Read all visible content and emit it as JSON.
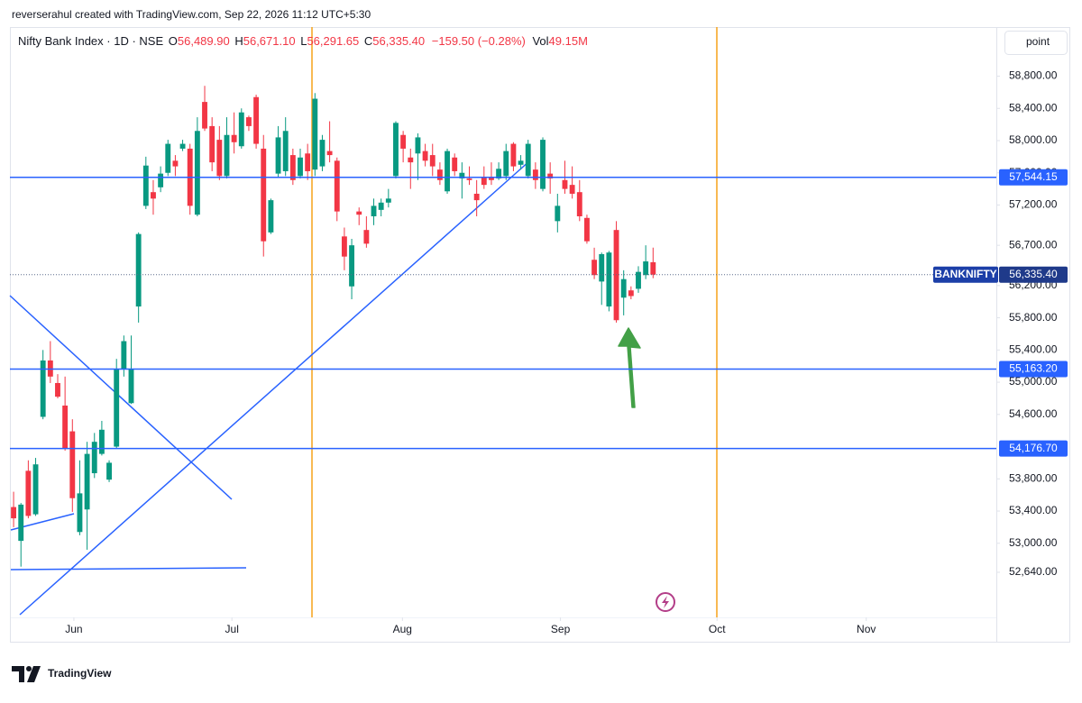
{
  "header": {
    "text": "reverserahul created with TradingView.com, Sep 22, 2026 11:12 UTC+5:30"
  },
  "chart_data": {
    "type": "candlestick",
    "legend": {
      "symbol": "Nifty Bank Index · 1D · NSE",
      "items": [
        {
          "label": "O",
          "value": "56,489.90"
        },
        {
          "label": "H",
          "value": "56,671.10"
        },
        {
          "label": "L",
          "value": "56,291.65"
        },
        {
          "label": "C",
          "value": "56,335.40"
        }
      ],
      "change": "−159.50 (−0.28%)",
      "volume": {
        "label": "Vol",
        "value": "49.15M"
      }
    },
    "scale_button": "point",
    "up_color": "#089981",
    "down_color": "#f23645",
    "open": [
      53450,
      53030,
      53900,
      53360,
      54570,
      55270,
      54990,
      54710,
      54390,
      53140,
      53420,
      53870,
      54110,
      53790,
      54200,
      55160,
      54740,
      55940,
      57190,
      57360,
      57420,
      57600,
      57750,
      57900,
      57900,
      57080,
      58480,
      58180,
      58010,
      57560,
      58070,
      57930,
      58290,
      58540,
      57900,
      56860,
      57590,
      57620,
      57820,
      57560,
      57840,
      57640,
      57680,
      57870,
      57750,
      56810,
      56190,
      57120,
      56890,
      57060,
      57140,
      57230,
      57560,
      58070,
      57790,
      57840,
      57870,
      57820,
      57640,
      57370,
      57790,
      57530,
      57530,
      57340,
      57540,
      57550,
      57530,
      57560,
      57960,
      57700,
      57560,
      57640,
      57400,
      57590,
      57000,
      57510,
      57450,
      57360,
      57040,
      56520,
      56250,
      55940,
      56890,
      56050,
      56140,
      56160,
      56330,
      56489.9
    ],
    "high": [
      53640,
      53500,
      54030,
      54060,
      55400,
      55510,
      55100,
      55070,
      54540,
      54030,
      54260,
      54370,
      54520,
      54030,
      55290,
      55580,
      55580,
      56860,
      57800,
      57510,
      57680,
      58010,
      57820,
      58010,
      57960,
      58290,
      58680,
      58290,
      58180,
      58290,
      58350,
      58400,
      58310,
      58570,
      58070,
      57280,
      58180,
      58290,
      57900,
      57900,
      57960,
      58590,
      58070,
      58240,
      57790,
      56920,
      56780,
      57170,
      57060,
      57280,
      57280,
      57400,
      58240,
      58120,
      57900,
      58090,
      57960,
      57960,
      57730,
      57900,
      57840,
      57730,
      57680,
      57510,
      57680,
      57730,
      57730,
      57960,
      57980,
      57820,
      58010,
      57730,
      58040,
      57730,
      57340,
      57750,
      57680,
      57510,
      57080,
      56670,
      56610,
      56630,
      57000,
      56390,
      56190,
      56440,
      56700,
      56671.1
    ],
    "low": [
      53200,
      52710,
      53310,
      53340,
      54540,
      54990,
      54800,
      54150,
      53390,
      53100,
      52920,
      53810,
      54090,
      53760,
      54180,
      55070,
      54730,
      55740,
      57150,
      57080,
      57360,
      57560,
      57560,
      57870,
      57080,
      57060,
      58120,
      57620,
      57510,
      57530,
      57840,
      57900,
      58120,
      57900,
      56560,
      56840,
      57550,
      57560,
      57450,
      57530,
      57510,
      57560,
      57620,
      57730,
      57000,
      56390,
      56030,
      56950,
      56670,
      56950,
      57060,
      57170,
      57530,
      57730,
      57400,
      57510,
      57680,
      57560,
      57450,
      57340,
      57560,
      57280,
      57450,
      57060,
      57400,
      57450,
      57510,
      57510,
      57620,
      57640,
      57530,
      57400,
      57370,
      57340,
      56860,
      57340,
      57280,
      57000,
      56720,
      56280,
      55960,
      55880,
      55740,
      55830,
      56030,
      56110,
      56280,
      56291.65
    ],
    "close": [
      53310,
      53480,
      53340,
      53980,
      55270,
      55070,
      54820,
      54180,
      53560,
      53620,
      54110,
      54260,
      54410,
      54000,
      55160,
      55510,
      55160,
      56840,
      57690,
      57280,
      57590,
      57960,
      57680,
      57960,
      57190,
      58120,
      58150,
      57730,
      57560,
      58070,
      57980,
      58350,
      58180,
      57960,
      56750,
      57260,
      58040,
      58120,
      57510,
      57790,
      57620,
      58520,
      58010,
      57820,
      57120,
      56560,
      56700,
      57080,
      56720,
      57190,
      57230,
      57280,
      58220,
      57900,
      57730,
      58040,
      57750,
      57680,
      57510,
      57870,
      57620,
      57600,
      57510,
      57260,
      57450,
      57510,
      57650,
      57870,
      57680,
      57750,
      57960,
      57510,
      58010,
      57530,
      57190,
      57400,
      57340,
      57060,
      56750,
      56330,
      56590,
      56610,
      55770,
      56280,
      56070,
      56370,
      56500,
      56335.4
    ],
    "xlim": [
      -0.5,
      133.7
    ],
    "xticks": [
      {
        "value": 8.2,
        "label": "Jun"
      },
      {
        "value": 29.7,
        "label": "Jul"
      },
      {
        "value": 52.9,
        "label": "Aug"
      },
      {
        "value": 74.4,
        "label": "Sep"
      },
      {
        "value": 95.7,
        "label": "Oct"
      },
      {
        "value": 116,
        "label": "Nov"
      }
    ],
    "ylim": [
      52080,
      59410
    ],
    "yticks": [
      {
        "value": 58800,
        "label": "58,800.00"
      },
      {
        "value": 58400,
        "label": "58,400.00"
      },
      {
        "value": 58000,
        "label": "58,000.00"
      },
      {
        "value": 57600,
        "label": "57,600.00"
      },
      {
        "value": 57200,
        "label": "57,200.00"
      },
      {
        "value": 56700,
        "label": "56,700.00"
      },
      {
        "value": 56200,
        "label": "56,200.00"
      },
      {
        "value": 55800,
        "label": "55,800.00"
      },
      {
        "value": 55400,
        "label": "55,400.00"
      },
      {
        "value": 55000,
        "label": "55,000.00"
      },
      {
        "value": 54600,
        "label": "54,600.00"
      },
      {
        "value": 53800,
        "label": "53,800.00"
      },
      {
        "value": 53400,
        "label": "53,400.00"
      },
      {
        "value": 53000,
        "label": "53,000.00"
      },
      {
        "value": 52640,
        "label": "52,640.00"
      }
    ],
    "grid": false,
    "hline_color": "#2962ff",
    "hlines": [
      {
        "value": 57544.15,
        "label": "57,544.15"
      },
      {
        "value": 55163.2,
        "label": "55,163.20"
      },
      {
        "value": 54176.7,
        "label": "54,176.70"
      }
    ],
    "last_price": {
      "name": "BANKNIFTY",
      "value": 56335.4,
      "label": "56,335.40"
    }
  },
  "footer": {
    "logo": "TradingView"
  }
}
